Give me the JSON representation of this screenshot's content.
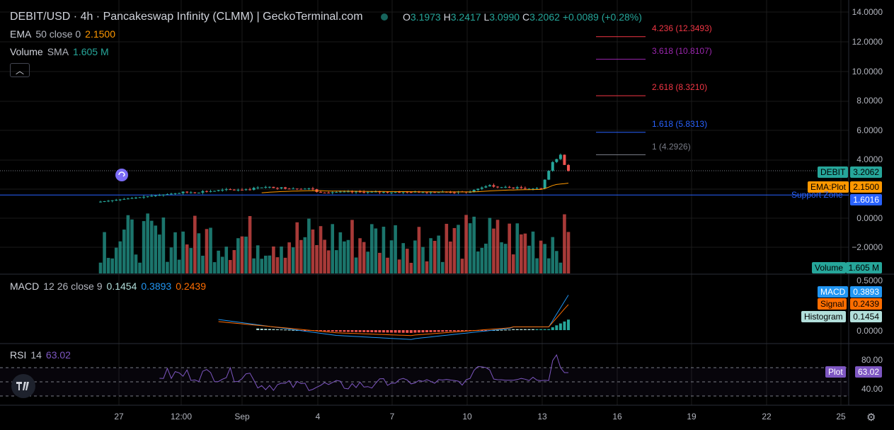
{
  "header": {
    "title": "DEBIT/USD · 4h · Pancakeswap Infinity (CLMM) | GeckoTerminal.com",
    "ohlc": {
      "o_label": "O",
      "o": "3.1973",
      "h_label": "H",
      "h": "3.2417",
      "l_label": "L",
      "l": "3.0990",
      "c_label": "C",
      "c": "3.2062",
      "change": "+0.0089 (+0.28%)"
    }
  },
  "indicators": {
    "ema": {
      "name": "EMA",
      "params": "50 close 0",
      "value": "2.1500"
    },
    "volume": {
      "name": "Volume",
      "params": "SMA",
      "value": "1.605 M"
    },
    "macd": {
      "name": "MACD",
      "params": "12 26 close 9",
      "hist": "0.1454",
      "macd": "0.3893",
      "signal": "0.2439"
    },
    "rsi": {
      "name": "RSI",
      "params": "14",
      "value": "63.02"
    }
  },
  "price_axis": [
    "14.0000",
    "12.0000",
    "10.0000",
    "8.0000",
    "6.0000",
    "4.0000",
    "0.0000",
    "−2.0000"
  ],
  "macd_axis": [
    "0.5000",
    "0.0000"
  ],
  "rsi_axis": [
    "80.00",
    "40.00"
  ],
  "time_axis": [
    {
      "label": "27",
      "x": 168
    },
    {
      "label": "12:00",
      "x": 256
    },
    {
      "label": "Sep",
      "x": 342
    },
    {
      "label": "4",
      "x": 449
    },
    {
      "label": "7",
      "x": 554
    },
    {
      "label": "10",
      "x": 660
    },
    {
      "label": "13",
      "x": 766
    },
    {
      "label": "16",
      "x": 872
    },
    {
      "label": "19",
      "x": 977
    },
    {
      "label": "22",
      "x": 1083
    },
    {
      "label": "25",
      "x": 1188
    }
  ],
  "tags": {
    "debit_name": "DEBIT",
    "debit_value": "3.2062",
    "ema_name": "EMA:Plot",
    "ema_value": "2.1500",
    "support_label": "Support Zone",
    "support_value": "1.6016",
    "volume_name": "Volume",
    "volume_value": "1.605 M",
    "macd_name": "MACD",
    "macd_value": "0.3893",
    "signal_name": "Signal",
    "signal_value": "0.2439",
    "hist_name": "Histogram",
    "hist_value": "0.1454",
    "rsi_name": "Plot",
    "rsi_value": "63.02"
  },
  "fib_levels": [
    {
      "label": "4.236 (12.3493)",
      "color": "#f23645",
      "price": 12.3493
    },
    {
      "label": "3.618 (10.8107)",
      "color": "#9c27b0",
      "price": 10.8107
    },
    {
      "label": "2.618 (8.3210)",
      "color": "#f23645",
      "price": 8.321
    },
    {
      "label": "1.618 (5.8313)",
      "color": "#2962ff",
      "price": 5.8313
    },
    {
      "label": "1 (4.2926)",
      "color": "#787b86",
      "price": 4.2926
    }
  ],
  "colors": {
    "up": "#26a69a",
    "down": "#ef5350",
    "ema": "#ff9800",
    "macd": "#2196f3",
    "signal": "#ff6d00",
    "rsi": "#7e57c2",
    "support": "#2962ff"
  },
  "chart_data": {
    "type": "candlestick",
    "ylim": [
      -3.5,
      14.5
    ],
    "support_price": 1.6016,
    "last_price": 3.2062,
    "ema_value": 2.15
  }
}
